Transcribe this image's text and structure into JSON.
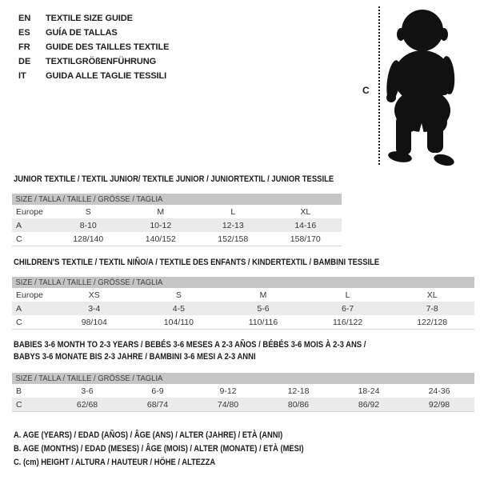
{
  "colors": {
    "band_gray": "#c6c6c6",
    "row_shade": "#ebebeb",
    "rule_gray": "#d8d8d8",
    "silhouette": "#111111"
  },
  "languages": [
    {
      "code": "EN",
      "title": "TEXTILE SIZE GUIDE"
    },
    {
      "code": "ES",
      "title": "GUÍA DE TALLAS"
    },
    {
      "code": "FR",
      "title": "GUIDE DES TAILLES TEXTILE"
    },
    {
      "code": "DE",
      "title": "TEXTILGRÖßENFÜHRUNG"
    },
    {
      "code": "IT",
      "title": "GUIDA ALLE TAGLIE TESSILI"
    }
  ],
  "figure": {
    "height_label": "C"
  },
  "tables": [
    {
      "title": "JUNIOR TEXTILE / TEXTIL JUNIOR/ TEXTILE JUNIOR / JUNIORTEXTIL / JUNIOR TESSILE",
      "size_header": "SIZE / TALLA / TAILLE / GRÖSSE / TAGLIA",
      "rows": [
        {
          "label": "Europe",
          "values": [
            "S",
            "M",
            "L",
            "XL"
          ],
          "shaded": false
        },
        {
          "label": "A",
          "values": [
            "8-10",
            "10-12",
            "12-13",
            "14-16"
          ],
          "shaded": true
        },
        {
          "label": "C",
          "values": [
            "128/140",
            "140/152",
            "152/158",
            "158/170"
          ],
          "shaded": false
        }
      ]
    },
    {
      "title": "CHILDREN'S TEXTILE / TEXTIL NIÑO/A / TEXTILE DES ENFANTS / KINDERTEXTIL / BAMBINI TESSILE",
      "size_header": "SIZE / TALLA / TAILLE / GRÖSSE / TAGLIA",
      "rows": [
        {
          "label": "Europe",
          "values": [
            "XS",
            "S",
            "M",
            "L",
            "XL"
          ],
          "shaded": false
        },
        {
          "label": "A",
          "values": [
            "3-4",
            "4-5",
            "5-6",
            "6-7",
            "7-8"
          ],
          "shaded": true
        },
        {
          "label": "C",
          "values": [
            "98/104",
            "104/110",
            "110/116",
            "116/122",
            "122/128"
          ],
          "shaded": false
        }
      ]
    },
    {
      "title": "BABIES 3-6 MONTH TO 2-3 YEARS / BEBÉS 3-6 MESES A 2-3 AÑOS / BÉBÉS 3-6 MOIS À 2-3 ANS /\nBABYS 3-6 MONATE BIS 2-3 JAHRE / BAMBINI 3-6 MESI A 2-3 ANNI",
      "size_header": "SIZE / TALLA / TAILLE / GRÖSSE / TAGLIA",
      "rows": [
        {
          "label": "B",
          "values": [
            "3-6",
            "6-9",
            "9-12",
            "12-18",
            "18-24",
            "24-36"
          ],
          "shaded": false
        },
        {
          "label": "C",
          "values": [
            "62/68",
            "68/74",
            "74/80",
            "80/86",
            "86/92",
            "92/98"
          ],
          "shaded": true
        }
      ]
    }
  ],
  "notes": [
    "A. AGE (YEARS) / EDAD (AÑOS) / ÂGE (ANS) / ALTER (JAHRE) / ETÀ (ANNI)",
    "B. AGE (MONTHS) / EDAD (MESES) / ÂGE (MOIS) / ALTER (MONATE) / ETÀ (MESI)",
    "C. (cm) HEIGHT / ALTURA / HAUTEUR / HÖHE / ALTEZZA"
  ]
}
